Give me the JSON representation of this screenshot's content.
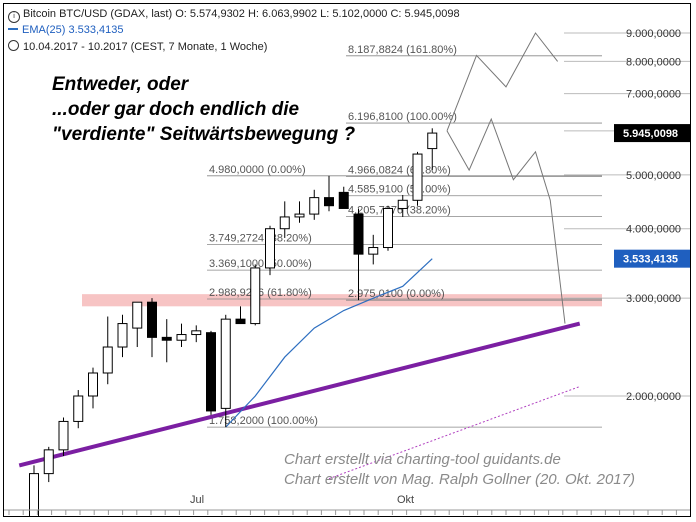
{
  "header": {
    "line1": "Bitcoin BTC/USD (GDAX, last)  O: 5.574,9302  H: 6.063,9902  L: 5.102,0000  C: 5.945,0098",
    "line2": "EMA(25)  3.533,4135",
    "line3": "10.04.2017 - 10.2017  (CEST, 7 Monate, 1 Woche)"
  },
  "annotation": {
    "line1": "Entweder, oder",
    "line2": "...oder gar doch endlich die",
    "line3": "\"verdiente\" Seitwärtsbewegung ?"
  },
  "credits": {
    "line1": "Chart erstellt via charting-tool guidants.de",
    "line2": "Chart erstellt von Mag. Ralph Gollner (20. Okt. 2017)"
  },
  "colors": {
    "up_candle": "#ffffff",
    "down_candle": "#000000",
    "ema": "#2e6fc0",
    "trendline": "#7b1fa2",
    "support_zone": "#f5b5b5",
    "fib": "#888888",
    "last_price_tag": "#000000",
    "ema_tag": "#1f5fbf"
  },
  "chart_data": {
    "type": "candlestick",
    "period": "weekly",
    "scale": "log",
    "ylim": [
      1450,
      10000
    ],
    "y_ticks": [
      "9.000,0000",
      "8.000,0000",
      "7.000,0000",
      "6.000,0000",
      "5.000,0000",
      "4.000,0000",
      "3.000,0000",
      "2.000,0000"
    ],
    "y_tick_values": [
      9000,
      8000,
      7000,
      6000,
      5000,
      4000,
      3000,
      2000
    ],
    "x_labels": [
      "Jul",
      "Okt"
    ],
    "candles": [
      {
        "o": 1200,
        "h": 1500,
        "l": 1150,
        "c": 1450
      },
      {
        "o": 1450,
        "h": 1620,
        "l": 1400,
        "c": 1600
      },
      {
        "o": 1600,
        "h": 1830,
        "l": 1560,
        "c": 1800
      },
      {
        "o": 1800,
        "h": 2050,
        "l": 1750,
        "c": 2000
      },
      {
        "o": 2000,
        "h": 2250,
        "l": 1900,
        "c": 2200
      },
      {
        "o": 2200,
        "h": 2780,
        "l": 2100,
        "c": 2450
      },
      {
        "o": 2450,
        "h": 2800,
        "l": 2350,
        "c": 2700
      },
      {
        "o": 2650,
        "h": 2950,
        "l": 2450,
        "c": 2950
      },
      {
        "o": 2950,
        "h": 3000,
        "l": 2350,
        "c": 2550
      },
      {
        "o": 2550,
        "h": 2750,
        "l": 2300,
        "c": 2520
      },
      {
        "o": 2520,
        "h": 2700,
        "l": 2450,
        "c": 2580
      },
      {
        "o": 2580,
        "h": 2680,
        "l": 2500,
        "c": 2620
      },
      {
        "o": 2600,
        "h": 2620,
        "l": 1850,
        "c": 1880
      },
      {
        "o": 1900,
        "h": 2800,
        "l": 1758,
        "c": 2750
      },
      {
        "o": 2750,
        "h": 2900,
        "l": 2700,
        "c": 2700
      },
      {
        "o": 2700,
        "h": 3450,
        "l": 2680,
        "c": 3400
      },
      {
        "o": 3400,
        "h": 4050,
        "l": 3300,
        "c": 4000
      },
      {
        "o": 4000,
        "h": 4480,
        "l": 3850,
        "c": 4200
      },
      {
        "o": 4200,
        "h": 4480,
        "l": 4100,
        "c": 4250
      },
      {
        "o": 4250,
        "h": 4700,
        "l": 4150,
        "c": 4550
      },
      {
        "o": 4550,
        "h": 4980,
        "l": 4300,
        "c": 4400
      },
      {
        "o": 4650,
        "h": 4760,
        "l": 4380,
        "c": 4350
      },
      {
        "o": 4250,
        "h": 4350,
        "l": 2975,
        "c": 3600
      },
      {
        "o": 3600,
        "h": 3900,
        "l": 3450,
        "c": 3700
      },
      {
        "o": 3700,
        "h": 4400,
        "l": 3650,
        "c": 4350
      },
      {
        "o": 4350,
        "h": 4600,
        "l": 4200,
        "c": 4500
      },
      {
        "o": 4500,
        "h": 5500,
        "l": 4400,
        "c": 5450
      },
      {
        "o": 5575,
        "h": 6064,
        "l": 5102,
        "c": 5945
      }
    ],
    "ema": {
      "name": "EMA(25)",
      "values": [
        [
          13,
          1758
        ],
        [
          15,
          2000
        ],
        [
          17,
          2350
        ],
        [
          19,
          2650
        ],
        [
          21,
          2850
        ],
        [
          23,
          3000
        ],
        [
          25,
          3150
        ],
        [
          27,
          3533
        ]
      ]
    },
    "fib_levels": [
      {
        "label": "8.187,8824 (161.80%)",
        "value": 8188
      },
      {
        "label": "6.196,8100 (100.00%)",
        "value": 6197
      },
      {
        "label": "4.980,0000 (0.00%)",
        "value": 4980
      },
      {
        "label": "4.966,0824 (61.80%)",
        "value": 4966
      },
      {
        "label": "4.585,9100 (50.00%)",
        "value": 4586
      },
      {
        "label": "4.205,7376 (38.20%)",
        "value": 4206
      },
      {
        "label": "3.749,2724 (38.20%)",
        "value": 3749
      },
      {
        "label": "3.369,1000 (50.00%)",
        "value": 3369
      },
      {
        "label": "2.988,9276 (61.80%)",
        "value": 2989
      },
      {
        "label": "2.975,0100 (0.00%)",
        "value": 2975
      },
      {
        "label": "1.758,2000 (100.00%)",
        "value": 1758
      }
    ],
    "support_zone": [
      2900,
      3050
    ],
    "trendlines": [
      {
        "style": "solid",
        "points": [
          [
            -1,
            1500
          ],
          [
            37,
            2700
          ]
        ]
      },
      {
        "style": "dotted",
        "points": [
          [
            20,
            1420
          ],
          [
            37,
            2080
          ]
        ]
      }
    ],
    "projections": [
      {
        "points": [
          [
            28,
            6000
          ],
          [
            30,
            8200
          ],
          [
            32,
            7200
          ],
          [
            34,
            9000
          ],
          [
            35.5,
            8000
          ]
        ]
      },
      {
        "points": [
          [
            28,
            6000
          ],
          [
            29.5,
            5100
          ],
          [
            31,
            6300
          ],
          [
            32.5,
            4900
          ],
          [
            34,
            5500
          ],
          [
            35,
            4500
          ],
          [
            36,
            2700
          ]
        ]
      }
    ],
    "last_price": {
      "label": "5.945,0098",
      "value": 5945
    },
    "ema_last": {
      "label": "3.533,4135",
      "value": 3533
    }
  }
}
